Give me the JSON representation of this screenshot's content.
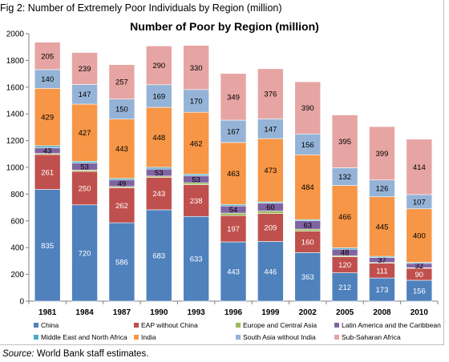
{
  "figure_caption": "Fig 2: Number of Extremely Poor Individuals by Region (million)",
  "source_label": "Source:",
  "source_text": "World Bank staff estimates.",
  "colors": {
    "China": "#4f81bd",
    "EAP without China": "#c0504d",
    "Europe and Central Asia": "#9bbb59",
    "Latin America and the Caribbean": "#8064a2",
    "Middle East and North Africa": "#4bacc6",
    "India": "#f79646",
    "South Asia without India": "#95b3d7",
    "Sub-Saharan Africa": "#e6a5a3"
  },
  "chart_data": {
    "type": "bar",
    "stacked": true,
    "title": "Number of Poor by Region (million)",
    "categories": [
      "1981",
      "1984",
      "1987",
      "1990",
      "1993",
      "1996",
      "1999",
      "2002",
      "2005",
      "2008",
      "2010"
    ],
    "ylim": [
      0,
      2000
    ],
    "yticks": [
      0,
      200,
      400,
      600,
      800,
      1000,
      1200,
      1400,
      1600,
      1800,
      2000
    ],
    "grid": false,
    "legend_position": "bottom",
    "series": [
      {
        "name": "China",
        "values": [
          835,
          720,
          586,
          683,
          633,
          443,
          446,
          363,
          212,
          173,
          156
        ],
        "labels": [
          "835",
          "720",
          "586",
          "683",
          "633",
          "443",
          "446",
          "363",
          "212",
          "173",
          "156"
        ]
      },
      {
        "name": "EAP without China",
        "values": [
          261,
          250,
          262,
          243,
          238,
          197,
          209,
          160,
          120,
          111,
          90
        ],
        "labels": [
          "261",
          "250",
          "262",
          "243",
          "238",
          "197",
          "209",
          "160",
          "120",
          "111",
          "90"
        ]
      },
      {
        "name": "Europe and Central Asia",
        "values": [
          8,
          10,
          9,
          9,
          14,
          18,
          18,
          15,
          8,
          5,
          4
        ],
        "labels": [
          "",
          "",
          "",
          "",
          "",
          "",
          "",
          "",
          "",
          "",
          ""
        ]
      },
      {
        "name": "Latin America and the Caribbean",
        "values": [
          43,
          53,
          49,
          53,
          53,
          54,
          60,
          63,
          48,
          37,
          32
        ],
        "labels": [
          "43",
          "53",
          "49",
          "53",
          "53",
          "54",
          "60",
          "63",
          "48",
          "37",
          "32"
        ]
      },
      {
        "name": "Middle East and North Africa",
        "values": [
          15,
          13,
          12,
          13,
          12,
          11,
          9,
          9,
          11,
          9,
          8
        ],
        "labels": [
          "",
          "",
          "",
          "",
          "",
          "",
          "",
          "",
          "",
          "",
          ""
        ]
      },
      {
        "name": "India",
        "values": [
          429,
          427,
          443,
          448,
          462,
          463,
          473,
          484,
          466,
          445,
          400
        ],
        "labels": [
          "429",
          "427",
          "443",
          "448",
          "462",
          "463",
          "473",
          "484",
          "466",
          "445",
          "400"
        ]
      },
      {
        "name": "South Asia without India",
        "values": [
          140,
          147,
          150,
          169,
          170,
          167,
          147,
          156,
          132,
          126,
          107
        ],
        "labels": [
          "140",
          "147",
          "150",
          "169",
          "170",
          "167",
          "147",
          "156",
          "132",
          "126",
          "107"
        ]
      },
      {
        "name": "Sub-Saharan Africa",
        "values": [
          205,
          239,
          257,
          290,
          330,
          349,
          376,
          390,
          395,
          399,
          414
        ],
        "labels": [
          "205",
          "239",
          "257",
          "290",
          "330",
          "349",
          "376",
          "390",
          "395",
          "399",
          "414"
        ]
      }
    ]
  }
}
